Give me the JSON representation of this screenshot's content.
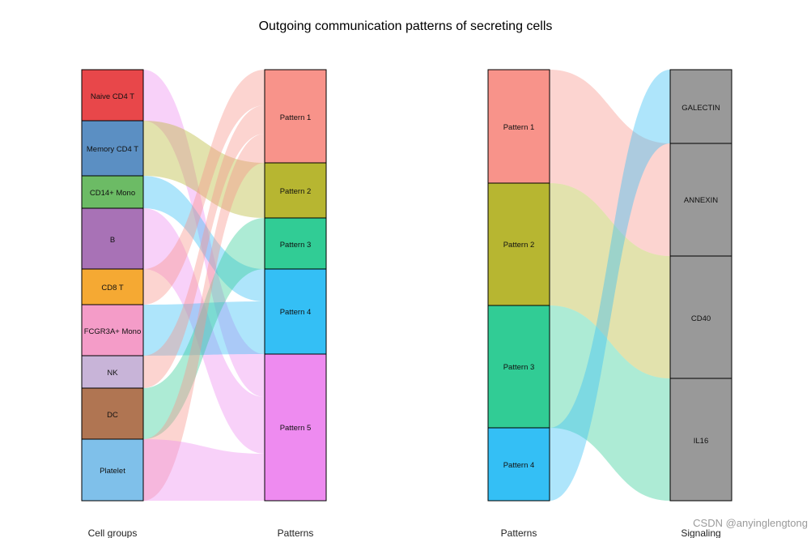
{
  "title": "Outgoing communication patterns of secreting cells",
  "watermark": "CSDN @anyinglengtong",
  "left_panel": {
    "left_axis_label": "Cell groups",
    "right_axis_label": "Patterns",
    "cell_groups": [
      {
        "label": "Naive CD4 T",
        "color": "#e8474a"
      },
      {
        "label": "Memory CD4 T",
        "color": "#5b8fc3"
      },
      {
        "label": "CD14+ Mono",
        "color": "#6cbb65"
      },
      {
        "label": "B",
        "color": "#a872b6"
      },
      {
        "label": "CD8 T",
        "color": "#f5a933"
      },
      {
        "label": "FCGR3A+ Mono",
        "color": "#f49cc8"
      },
      {
        "label": "NK",
        "color": "#c8b4d8"
      },
      {
        "label": "DC",
        "color": "#b07552"
      },
      {
        "label": "Platelet",
        "color": "#7fc0ea"
      }
    ],
    "patterns": [
      {
        "label": "Pattern 1",
        "color": "#f8938a"
      },
      {
        "label": "Pattern 2",
        "color": "#b7b631"
      },
      {
        "label": "Pattern 3",
        "color": "#31cc95"
      },
      {
        "label": "Pattern 4",
        "color": "#34bff5"
      },
      {
        "label": "Pattern 5",
        "color": "#ee8bf0"
      }
    ]
  },
  "right_panel": {
    "left_axis_label": "Patterns",
    "right_axis_label": "Signaling",
    "patterns": [
      {
        "label": "Pattern 1",
        "color": "#f8938a"
      },
      {
        "label": "Pattern 2",
        "color": "#b7b631"
      },
      {
        "label": "Pattern 3",
        "color": "#31cc95"
      },
      {
        "label": "Pattern 4",
        "color": "#34bff5"
      }
    ],
    "signaling": [
      {
        "label": "GALECTIN",
        "color": "#999999"
      },
      {
        "label": "ANNEXIN",
        "color": "#999999"
      },
      {
        "label": "CD40",
        "color": "#999999"
      },
      {
        "label": "IL16",
        "color": "#999999"
      }
    ]
  }
}
